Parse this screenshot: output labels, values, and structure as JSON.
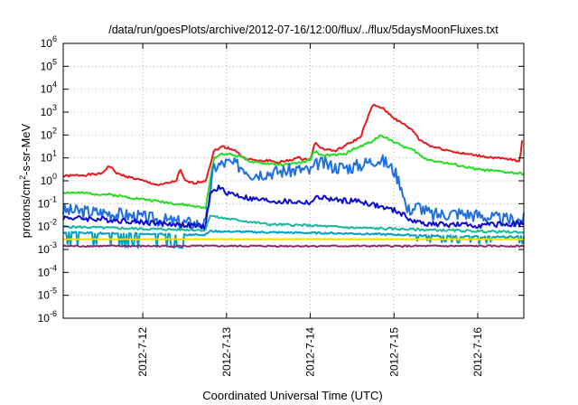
{
  "chart_data": {
    "type": "line",
    "title": "/data/run/goesPlots/archive/2012-07-16/12:00/flux/../flux/5daysMoonFluxes.txt",
    "xlabel": "Coordinated Universal Time (UTC)",
    "ylabel_main": "protons/cm",
    "ylabel_sup": "2",
    "ylabel_tail": "-s-sr-MeV",
    "x_ticks": [
      {
        "label": "2012-7-12",
        "day": 12
      },
      {
        "label": "2012-7-13",
        "day": 13
      },
      {
        "label": "2012-7-14",
        "day": 14
      },
      {
        "label": "2012-7-15",
        "day": 15
      },
      {
        "label": "2012-7-16",
        "day": 16
      }
    ],
    "xlim_days": [
      11.05,
      16.55
    ],
    "y_log_scale": true,
    "ylim_exp": [
      -6,
      6
    ],
    "y_tick_base": "10",
    "y_tick_exps": [
      "-6",
      "-5",
      "-4",
      "-3",
      "-2",
      "-1",
      "0",
      "1",
      "2",
      "3",
      "4",
      "5",
      "6"
    ],
    "grid": true,
    "legend": "none",
    "series": [
      {
        "color": "#e41a1c",
        "kind": "smooth",
        "noise": 0.05,
        "seed": 1,
        "points": [
          [
            11.05,
            0.2
          ],
          [
            11.5,
            0.3
          ],
          [
            11.6,
            0.65
          ],
          [
            11.7,
            0.3
          ],
          [
            12.0,
            0.0
          ],
          [
            12.2,
            -0.2
          ],
          [
            12.4,
            0.0
          ],
          [
            12.45,
            0.5
          ],
          [
            12.5,
            0.0
          ],
          [
            12.6,
            -0.1
          ],
          [
            12.75,
            0.0
          ],
          [
            12.85,
            1.3
          ],
          [
            12.95,
            1.5
          ],
          [
            13.1,
            1.35
          ],
          [
            13.2,
            1.0
          ],
          [
            13.4,
            0.85
          ],
          [
            13.5,
            0.9
          ],
          [
            13.6,
            0.8
          ],
          [
            13.7,
            0.85
          ],
          [
            13.85,
            1.0
          ],
          [
            14.0,
            0.9
          ],
          [
            14.05,
            1.65
          ],
          [
            14.15,
            1.4
          ],
          [
            14.3,
            1.3
          ],
          [
            14.4,
            1.5
          ],
          [
            14.5,
            1.7
          ],
          [
            14.6,
            1.9
          ],
          [
            14.65,
            2.4
          ],
          [
            14.7,
            2.9
          ],
          [
            14.75,
            3.3
          ],
          [
            14.85,
            3.2
          ],
          [
            14.95,
            2.9
          ],
          [
            15.05,
            2.6
          ],
          [
            15.15,
            2.4
          ],
          [
            15.25,
            2.1
          ],
          [
            15.3,
            1.8
          ],
          [
            15.45,
            1.5
          ],
          [
            15.8,
            1.2
          ],
          [
            16.2,
            1.0
          ],
          [
            16.45,
            0.9
          ],
          [
            16.5,
            0.85
          ],
          [
            16.53,
            1.8
          ]
        ]
      },
      {
        "color": "#22dd22",
        "kind": "smooth",
        "noise": 0.05,
        "seed": 2,
        "points": [
          [
            11.05,
            -0.5
          ],
          [
            11.6,
            -0.6
          ],
          [
            12.0,
            -0.8
          ],
          [
            12.4,
            -1.0
          ],
          [
            12.6,
            -1.1
          ],
          [
            12.75,
            -1.2
          ],
          [
            12.85,
            1.0
          ],
          [
            12.95,
            1.2
          ],
          [
            13.2,
            1.05
          ],
          [
            13.3,
            0.8
          ],
          [
            13.5,
            0.75
          ],
          [
            13.7,
            0.7
          ],
          [
            13.9,
            0.8
          ],
          [
            14.0,
            0.9
          ],
          [
            14.05,
            1.3
          ],
          [
            14.15,
            1.1
          ],
          [
            14.4,
            1.15
          ],
          [
            14.5,
            1.35
          ],
          [
            14.6,
            1.5
          ],
          [
            14.75,
            1.75
          ],
          [
            14.85,
            2.0
          ],
          [
            14.9,
            1.9
          ],
          [
            15.05,
            1.6
          ],
          [
            15.25,
            1.3
          ],
          [
            15.35,
            1.0
          ],
          [
            15.45,
            0.9
          ],
          [
            16.0,
            0.5
          ],
          [
            16.55,
            0.3
          ]
        ]
      },
      {
        "color": "#1e6fe0",
        "kind": "noisy",
        "noise": 0.3,
        "seed": 3,
        "points": [
          [
            11.05,
            -1.3
          ],
          [
            11.6,
            -1.4
          ],
          [
            12.0,
            -1.6
          ],
          [
            12.4,
            -1.8
          ],
          [
            12.75,
            -1.9
          ],
          [
            12.85,
            0.6
          ],
          [
            13.0,
            0.8
          ],
          [
            13.2,
            0.6
          ],
          [
            13.3,
            0.3
          ],
          [
            13.6,
            0.4
          ],
          [
            13.9,
            0.5
          ],
          [
            14.0,
            0.4
          ],
          [
            14.1,
            0.8
          ],
          [
            14.3,
            0.6
          ],
          [
            14.5,
            0.6
          ],
          [
            14.6,
            0.7
          ],
          [
            14.8,
            0.95
          ],
          [
            14.9,
            0.8
          ],
          [
            15.0,
            0.45
          ],
          [
            15.1,
            -0.3
          ],
          [
            15.15,
            -1.3
          ],
          [
            15.3,
            -1.1
          ],
          [
            15.45,
            -1.5
          ],
          [
            15.75,
            -1.4
          ],
          [
            16.0,
            -1.5
          ],
          [
            16.3,
            -1.7
          ],
          [
            16.55,
            -1.7
          ]
        ]
      },
      {
        "color": "#0a0ad0",
        "kind": "noisy",
        "noise": 0.12,
        "seed": 4,
        "points": [
          [
            11.05,
            -1.6
          ],
          [
            11.6,
            -1.7
          ],
          [
            12.0,
            -1.8
          ],
          [
            12.4,
            -1.9
          ],
          [
            12.75,
            -2.0
          ],
          [
            12.8,
            -0.6
          ],
          [
            12.9,
            -0.3
          ],
          [
            13.0,
            -0.5
          ],
          [
            13.3,
            -0.8
          ],
          [
            13.6,
            -0.9
          ],
          [
            14.0,
            -0.95
          ],
          [
            14.1,
            -0.7
          ],
          [
            14.3,
            -0.85
          ],
          [
            14.6,
            -0.9
          ],
          [
            14.8,
            -1.1
          ],
          [
            15.05,
            -1.35
          ],
          [
            15.25,
            -1.8
          ],
          [
            15.5,
            -1.9
          ],
          [
            16.0,
            -1.95
          ],
          [
            16.55,
            -1.85
          ]
        ]
      },
      {
        "color": "#19b8a0",
        "kind": "smooth",
        "noise": 0.05,
        "seed": 5,
        "points": [
          [
            11.05,
            -2.0
          ],
          [
            12.0,
            -2.1
          ],
          [
            12.75,
            -2.15
          ],
          [
            12.8,
            -1.5
          ],
          [
            12.9,
            -1.6
          ],
          [
            13.5,
            -1.9
          ],
          [
            14.0,
            -1.95
          ],
          [
            14.5,
            -2.05
          ],
          [
            15.0,
            -2.1
          ],
          [
            15.5,
            -2.15
          ],
          [
            16.0,
            -2.2
          ],
          [
            16.55,
            -2.25
          ]
        ]
      },
      {
        "color": "#00a0c8",
        "kind": "dips",
        "noise": 0.04,
        "seed": 6,
        "points": [
          [
            11.05,
            -2.25
          ],
          [
            11.6,
            -2.3
          ],
          [
            12.0,
            -2.3
          ],
          [
            12.4,
            -2.35
          ],
          [
            12.75,
            -2.35
          ],
          [
            12.8,
            -2.2
          ],
          [
            13.5,
            -2.25
          ],
          [
            14.5,
            -2.3
          ],
          [
            15.0,
            -2.35
          ],
          [
            15.5,
            -2.4
          ],
          [
            16.0,
            -2.45
          ],
          [
            16.55,
            -2.45
          ]
        ]
      },
      {
        "color": "#f0e000",
        "kind": "smooth",
        "noise": 0.01,
        "seed": 7,
        "points": [
          [
            11.05,
            -2.55
          ],
          [
            16.55,
            -2.55
          ]
        ]
      },
      {
        "color": "#8b2a6e",
        "kind": "smooth",
        "noise": 0.035,
        "seed": 8,
        "points": [
          [
            11.05,
            -2.85
          ],
          [
            16.55,
            -2.85
          ]
        ]
      }
    ]
  }
}
